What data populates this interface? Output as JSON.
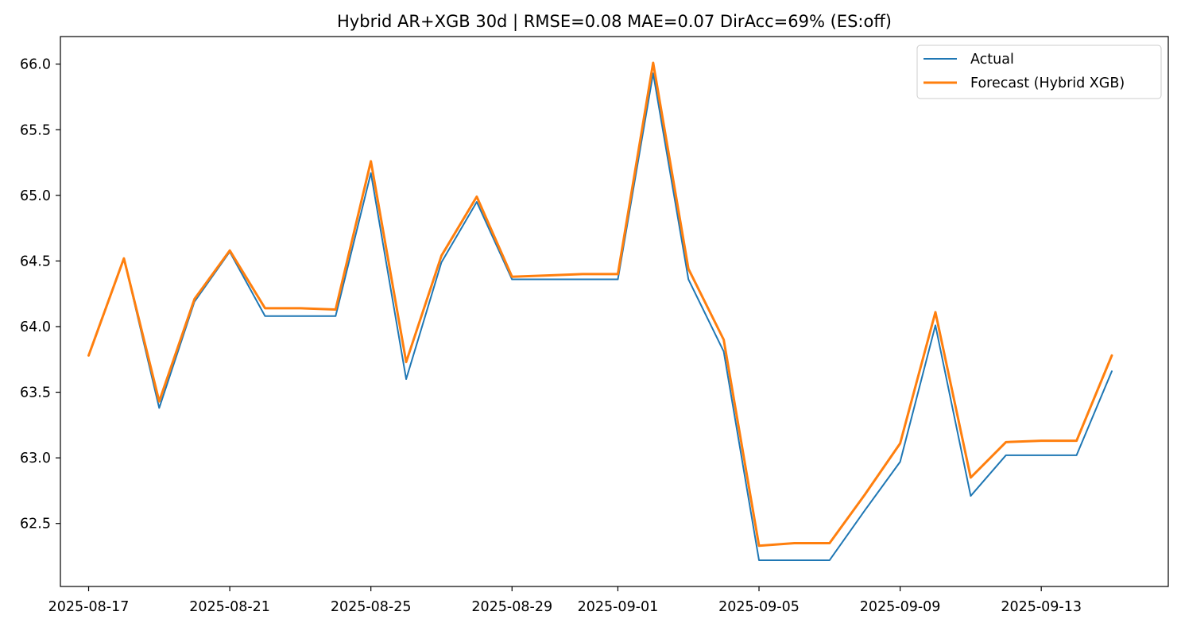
{
  "chart_data": {
    "type": "line",
    "title": "Hybrid AR+XGB 30d  |  RMSE=0.08  MAE=0.07  DirAcc=69%  (ES:off)",
    "xlabel": "",
    "ylabel": "",
    "x_axis": "date",
    "x": [
      "2025-08-17",
      "2025-08-18",
      "2025-08-19",
      "2025-08-20",
      "2025-08-21",
      "2025-08-22",
      "2025-08-23",
      "2025-08-24",
      "2025-08-25",
      "2025-08-26",
      "2025-08-27",
      "2025-08-28",
      "2025-08-29",
      "2025-08-30",
      "2025-08-31",
      "2025-09-01",
      "2025-09-02",
      "2025-09-03",
      "2025-09-04",
      "2025-09-05",
      "2025-09-06",
      "2025-09-07",
      "2025-09-08",
      "2025-09-09",
      "2025-09-10",
      "2025-09-11",
      "2025-09-12",
      "2025-09-13",
      "2025-09-14",
      "2025-09-15"
    ],
    "series": [
      {
        "name": "Actual",
        "color": "#1f77b4",
        "values": [
          63.78,
          64.52,
          63.38,
          64.19,
          64.57,
          64.08,
          64.08,
          64.08,
          65.17,
          63.6,
          64.49,
          64.95,
          64.36,
          64.36,
          64.36,
          64.36,
          65.93,
          64.36,
          63.81,
          62.22,
          62.22,
          62.22,
          62.6,
          62.97,
          64.01,
          62.71,
          63.02,
          63.02,
          63.02,
          63.66
        ]
      },
      {
        "name": "Forecast (Hybrid XGB)",
        "color": "#ff7f0e",
        "values": [
          63.78,
          64.52,
          63.43,
          64.21,
          64.58,
          64.14,
          64.14,
          64.13,
          65.26,
          63.73,
          64.54,
          64.99,
          64.38,
          64.39,
          64.4,
          64.4,
          66.01,
          64.44,
          63.9,
          62.33,
          62.35,
          62.35,
          62.72,
          63.11,
          64.11,
          62.85,
          63.12,
          63.13,
          63.13,
          63.78
        ]
      }
    ],
    "x_ticks": [
      "2025-08-17",
      "2025-08-21",
      "2025-08-25",
      "2025-08-29",
      "2025-09-01",
      "2025-09-05",
      "2025-09-09",
      "2025-09-13"
    ],
    "y_ticks": [
      "62.5",
      "63.0",
      "63.5",
      "64.0",
      "64.5",
      "65.0",
      "65.5",
      "66.0"
    ],
    "xlim": [
      "2025-08-16.2",
      "2025-09-16.6"
    ],
    "ylim": [
      62.02,
      66.21
    ],
    "grid": false,
    "legend_position": "top-right"
  }
}
